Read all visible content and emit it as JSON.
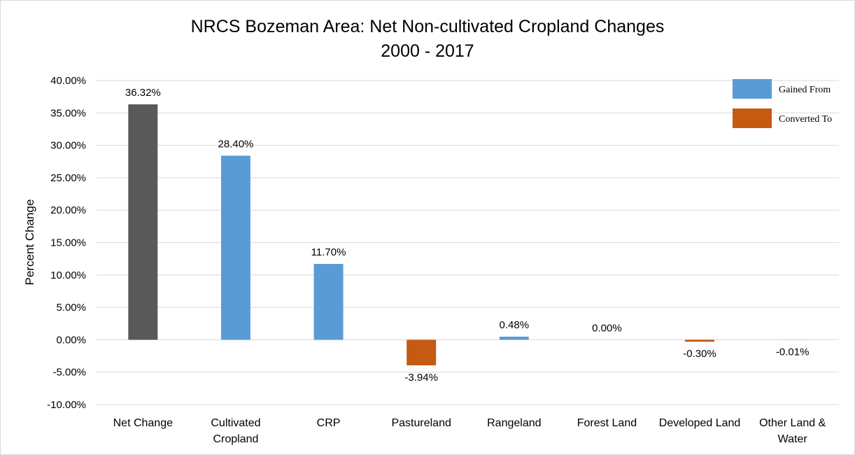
{
  "chart_data": {
    "type": "bar",
    "title": "NRCS Bozeman Area: Net Non-cultivated Cropland Changes",
    "subtitle": "2000 - 2017",
    "xlabel": "",
    "ylabel": "Percent Change",
    "ylim": [
      -10,
      40
    ],
    "ytick_step": 5,
    "ytick_labels": [
      "-10.00%",
      "-5.00%",
      "0.00%",
      "5.00%",
      "10.00%",
      "15.00%",
      "20.00%",
      "25.00%",
      "30.00%",
      "35.00%",
      "40.00%"
    ],
    "grid": true,
    "legend_position": "top-right",
    "categories": [
      [
        "Net Change"
      ],
      [
        "Cultivated",
        "Cropland"
      ],
      [
        "CRP"
      ],
      [
        "Pastureland"
      ],
      [
        "Rangeland"
      ],
      [
        "Forest Land"
      ],
      [
        "Developed Land"
      ],
      [
        "Other Land &",
        "Water"
      ]
    ],
    "values": [
      36.32,
      28.4,
      11.7,
      -3.94,
      0.48,
      0.0,
      -0.3,
      -0.01
    ],
    "data_labels": [
      "36.32%",
      "28.40%",
      "11.70%",
      "-3.94%",
      "0.48%",
      "0.00%",
      "-0.30%",
      "-0.01%"
    ],
    "bar_groups": [
      "net",
      "gained",
      "gained",
      "converted",
      "gained",
      "gained",
      "converted",
      "converted"
    ],
    "legend": [
      {
        "key": "gained",
        "label": "Gained From"
      },
      {
        "key": "converted",
        "label": "Converted To"
      }
    ],
    "colors": {
      "net": "#595959",
      "gained": "#5b9bd5",
      "converted": "#c55a11"
    }
  }
}
